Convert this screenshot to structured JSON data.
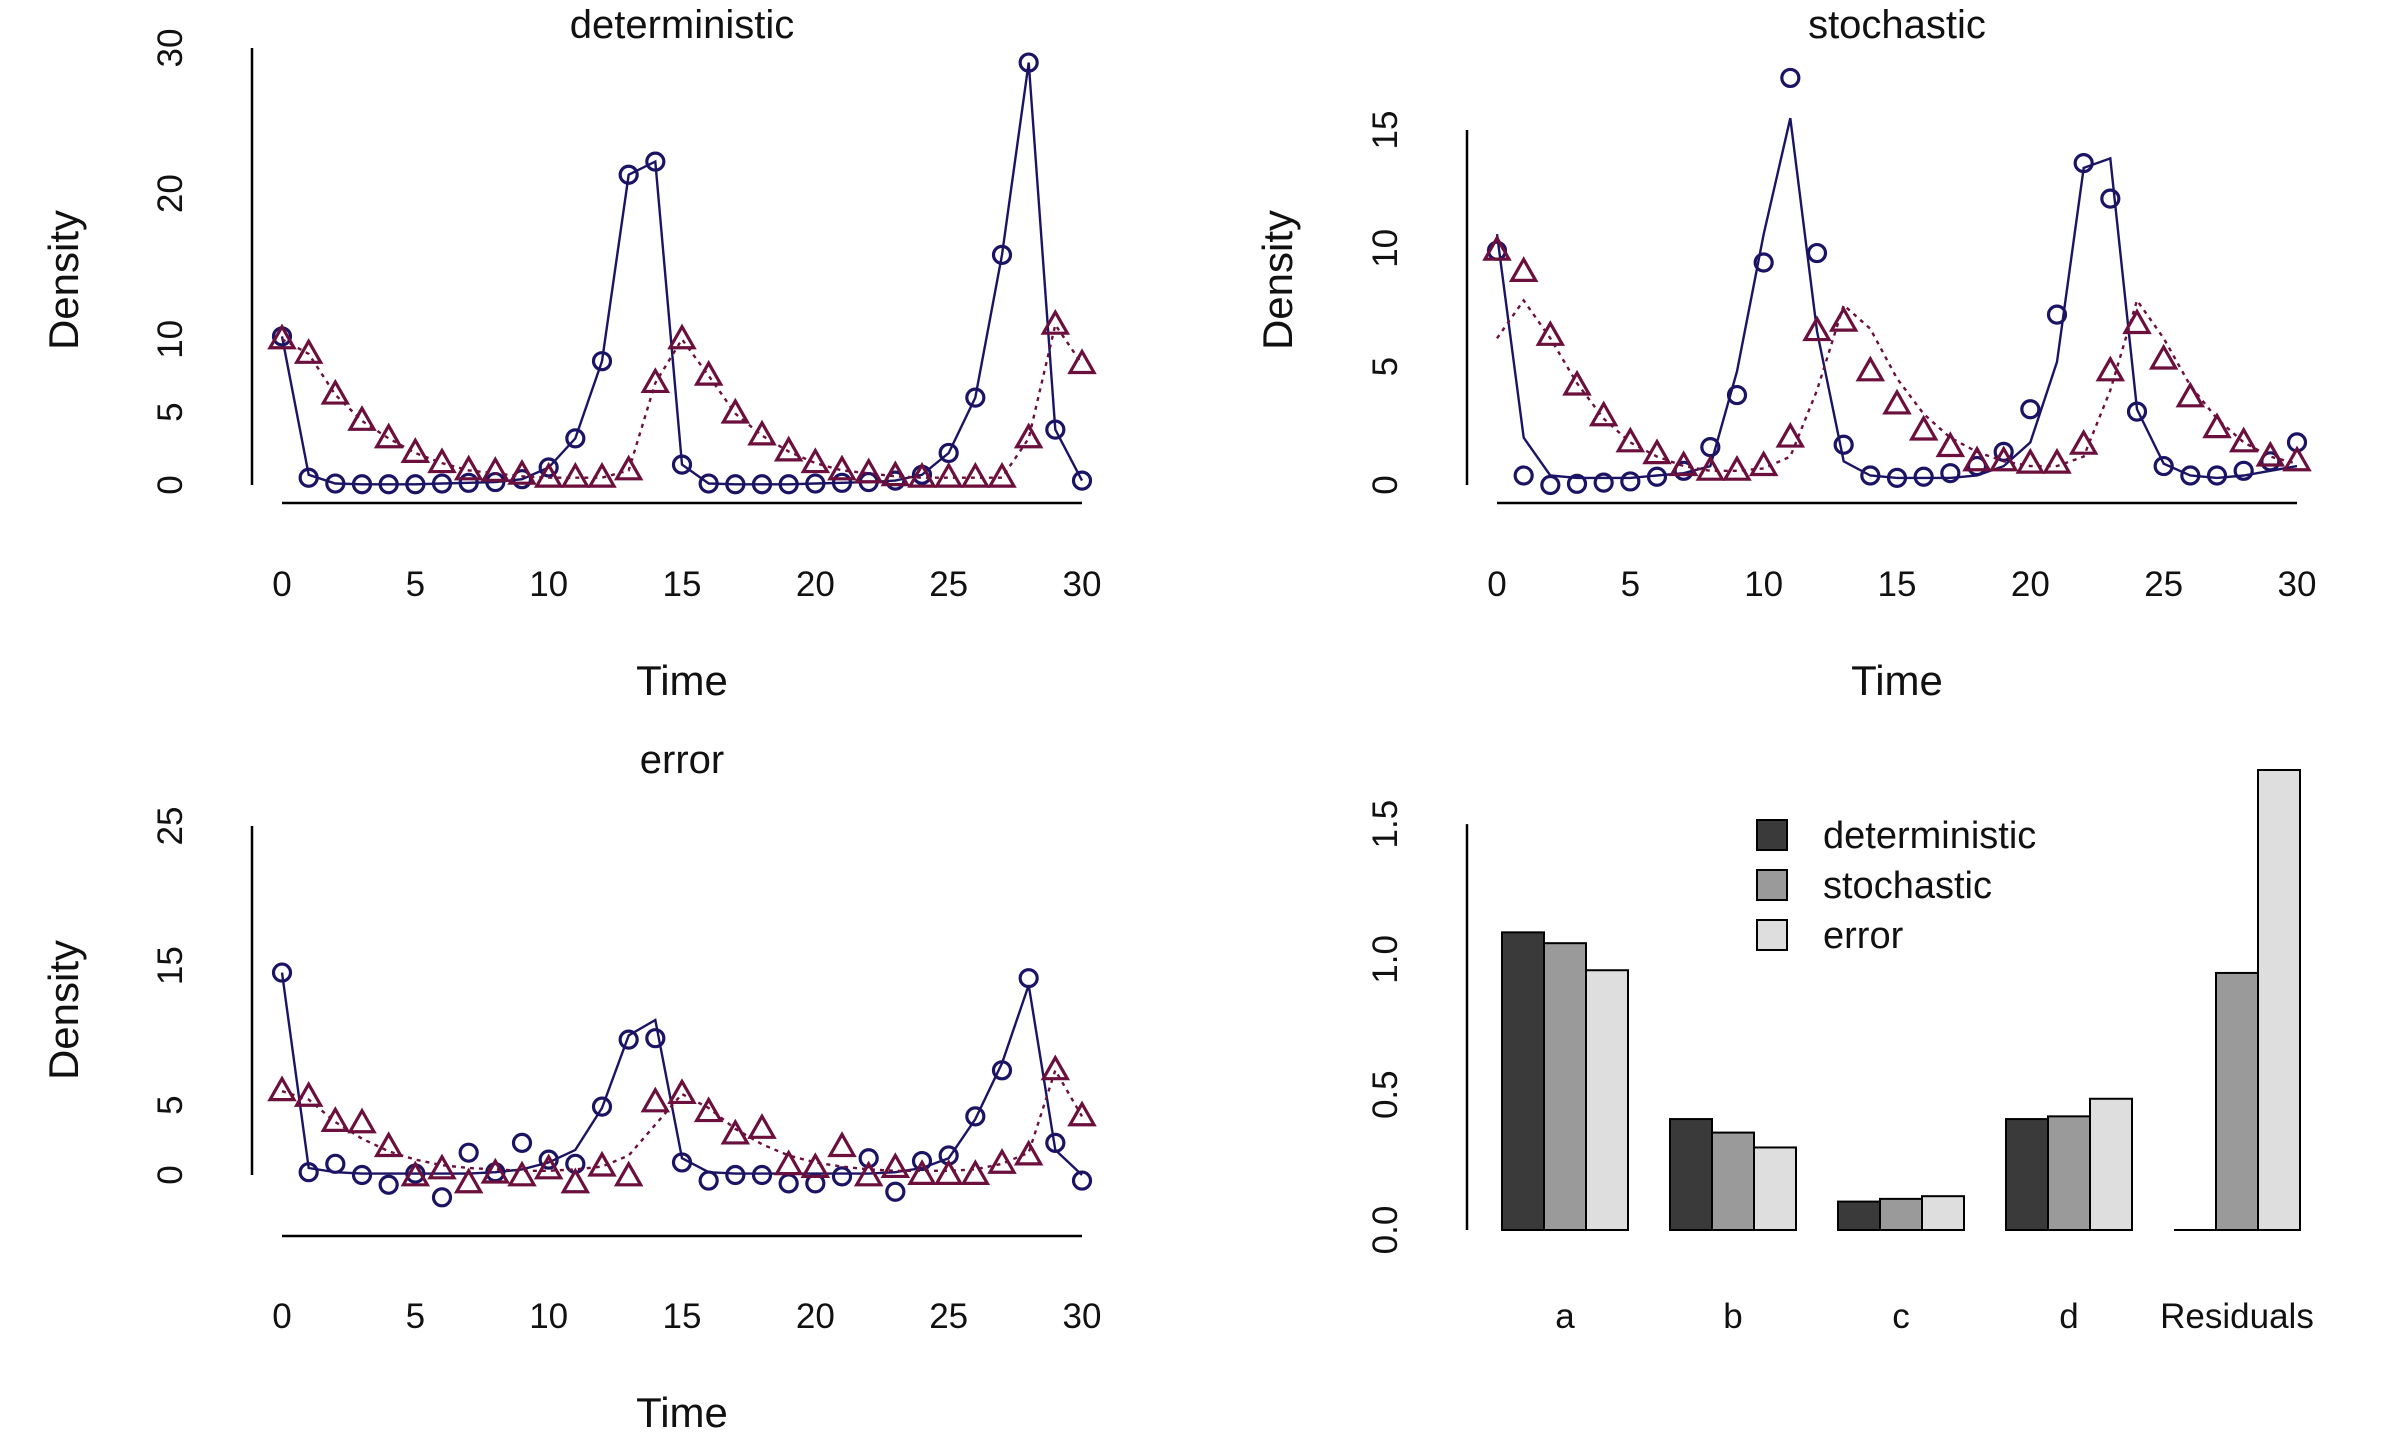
{
  "figure": {
    "layout": "2x2"
  },
  "colors": {
    "prey": "#1b1464",
    "predator": "#6b0f3c",
    "axis": "#000000"
  },
  "chart_data": [
    {
      "type": "line",
      "title": "deterministic",
      "xlabel": "Time",
      "ylabel": "Density",
      "xlim": [
        0,
        30
      ],
      "ylim": [
        0,
        30
      ],
      "xticks": [
        0,
        5,
        10,
        15,
        20,
        25,
        30
      ],
      "yticks": [
        0,
        5,
        10,
        20,
        30
      ],
      "series": [
        {
          "role": "prey",
          "marker": "circle",
          "line": "solid",
          "x": [
            0,
            1,
            2,
            3,
            4,
            5,
            6,
            7,
            8,
            9,
            10,
            11,
            12,
            13,
            14,
            15,
            16,
            17,
            18,
            19,
            20,
            21,
            22,
            23,
            24,
            25,
            26,
            27,
            28,
            29,
            30
          ],
          "points": [
            10.2,
            0.5,
            0.1,
            0.05,
            0.05,
            0.05,
            0.1,
            0.15,
            0.2,
            0.4,
            1.2,
            3.2,
            8.5,
            21.3,
            22.2,
            1.4,
            0.1,
            0.05,
            0.05,
            0.05,
            0.1,
            0.15,
            0.2,
            0.3,
            0.7,
            2.2,
            6.0,
            15.8,
            29.0,
            3.8,
            0.3
          ],
          "fit": [
            10.2,
            0.7,
            0.1,
            0.05,
            0.05,
            0.05,
            0.1,
            0.15,
            0.2,
            0.4,
            1.2,
            3.2,
            8.5,
            21.3,
            22.2,
            1.4,
            0.1,
            0.05,
            0.05,
            0.05,
            0.1,
            0.15,
            0.2,
            0.3,
            0.7,
            2.2,
            6.0,
            15.8,
            29.0,
            3.8,
            0.3
          ]
        },
        {
          "role": "predator",
          "marker": "triangle",
          "line": "dotted",
          "x": [
            0,
            1,
            2,
            3,
            4,
            5,
            6,
            7,
            8,
            9,
            10,
            11,
            12,
            13,
            14,
            15,
            16,
            17,
            18,
            19,
            20,
            21,
            22,
            23,
            24,
            25,
            26,
            27,
            28,
            29,
            30
          ],
          "points": [
            10.0,
            9.0,
            6.2,
            4.4,
            3.2,
            2.2,
            1.5,
            1.0,
            0.9,
            0.7,
            0.5,
            0.5,
            0.5,
            1.0,
            7.0,
            10.0,
            7.5,
            4.9,
            3.4,
            2.3,
            1.5,
            1.0,
            0.8,
            0.6,
            0.5,
            0.5,
            0.5,
            0.5,
            3.2,
            11.0,
            8.3
          ],
          "fit": [
            10.0,
            9.0,
            6.2,
            4.4,
            3.2,
            2.2,
            1.5,
            1.0,
            0.8,
            0.6,
            0.5,
            0.5,
            0.5,
            1.0,
            7.0,
            10.0,
            7.5,
            4.9,
            3.4,
            2.3,
            1.5,
            1.0,
            0.8,
            0.6,
            0.5,
            0.5,
            0.5,
            0.5,
            3.2,
            11.0,
            8.3
          ]
        }
      ]
    },
    {
      "type": "line",
      "title": "stochastic",
      "xlabel": "Time",
      "ylabel": "Density",
      "xlim": [
        0,
        30
      ],
      "ylim": [
        0,
        15
      ],
      "xticks": [
        0,
        5,
        10,
        15,
        20,
        25,
        30
      ],
      "yticks": [
        0,
        5,
        10,
        15
      ],
      "series": [
        {
          "role": "prey",
          "marker": "circle",
          "line": "solid",
          "x": [
            0,
            1,
            2,
            3,
            4,
            5,
            6,
            7,
            8,
            9,
            10,
            11,
            12,
            13,
            14,
            15,
            16,
            17,
            18,
            19,
            20,
            21,
            22,
            23,
            24,
            25,
            26,
            27,
            28,
            29,
            30
          ],
          "points": [
            9.9,
            0.4,
            0.0,
            0.05,
            0.1,
            0.15,
            0.35,
            0.6,
            1.6,
            3.8,
            9.4,
            17.2,
            9.8,
            1.7,
            0.4,
            0.3,
            0.35,
            0.5,
            0.8,
            1.4,
            3.2,
            7.2,
            13.6,
            12.1,
            3.1,
            0.8,
            0.4,
            0.4,
            0.6,
            1.0,
            1.8
          ],
          "fit": [
            10.6,
            2.0,
            0.4,
            0.3,
            0.3,
            0.3,
            0.4,
            0.5,
            0.8,
            4.8,
            10.6,
            15.5,
            6.5,
            1.0,
            0.4,
            0.3,
            0.3,
            0.3,
            0.4,
            0.8,
            1.8,
            5.2,
            13.4,
            13.8,
            3.2,
            0.9,
            0.4,
            0.3,
            0.4,
            0.6,
            0.8
          ]
        },
        {
          "role": "predator",
          "marker": "triangle",
          "line": "dotted",
          "x": [
            0,
            1,
            2,
            3,
            4,
            5,
            6,
            7,
            8,
            9,
            10,
            11,
            12,
            13,
            14,
            15,
            16,
            17,
            18,
            19,
            20,
            21,
            22,
            23,
            24,
            25,
            26,
            27,
            28,
            29,
            30
          ],
          "points": [
            9.9,
            9.0,
            6.3,
            4.2,
            2.9,
            1.8,
            1.3,
            0.8,
            0.6,
            0.6,
            0.8,
            2.0,
            6.5,
            6.9,
            4.8,
            3.4,
            2.3,
            1.6,
            1.0,
            1.0,
            0.9,
            0.9,
            1.7,
            4.8,
            6.8,
            5.3,
            3.7,
            2.4,
            1.8,
            1.2,
            1.0
          ],
          "fit": [
            6.2,
            7.8,
            6.2,
            4.3,
            2.8,
            1.8,
            1.2,
            0.8,
            0.6,
            0.6,
            0.7,
            1.2,
            4.0,
            7.6,
            6.6,
            4.5,
            3.0,
            2.0,
            1.4,
            1.0,
            0.8,
            0.8,
            1.2,
            4.0,
            7.8,
            6.2,
            4.2,
            2.8,
            1.8,
            1.2,
            0.9
          ]
        }
      ]
    },
    {
      "type": "line",
      "title": "error",
      "xlabel": "Time",
      "ylabel": "Density",
      "xlim": [
        0,
        30
      ],
      "ylim": [
        0,
        25
      ],
      "xticks": [
        0,
        5,
        10,
        15,
        20,
        25,
        30
      ],
      "yticks": [
        0,
        5,
        15,
        25
      ],
      "series": [
        {
          "role": "prey",
          "marker": "circle",
          "line": "solid",
          "x": [
            0,
            1,
            2,
            3,
            4,
            5,
            6,
            7,
            8,
            9,
            10,
            11,
            12,
            13,
            14,
            15,
            16,
            17,
            18,
            19,
            20,
            21,
            22,
            23,
            24,
            25,
            26,
            27,
            28,
            29,
            30
          ],
          "points": [
            14.5,
            0.2,
            0.8,
            0.0,
            -0.7,
            0.1,
            -1.6,
            1.6,
            0.2,
            2.3,
            1.1,
            0.8,
            4.9,
            9.7,
            9.8,
            0.9,
            -0.4,
            0.0,
            0.0,
            -0.6,
            -0.6,
            -0.1,
            1.2,
            -1.2,
            1.0,
            1.4,
            4.2,
            7.5,
            14.1,
            2.3,
            -0.4
          ],
          "fit": [
            14.5,
            0.5,
            0.2,
            0.1,
            0.1,
            0.1,
            0.1,
            0.1,
            0.2,
            0.4,
            0.9,
            1.8,
            4.8,
            10.0,
            11.1,
            1.2,
            0.2,
            0.1,
            0.1,
            0.1,
            0.1,
            0.1,
            0.1,
            0.2,
            0.5,
            1.2,
            4.0,
            8.0,
            13.6,
            1.8,
            0.0
          ]
        },
        {
          "role": "predator",
          "marker": "triangle",
          "line": "dotted",
          "x": [
            0,
            1,
            2,
            3,
            4,
            5,
            6,
            7,
            8,
            9,
            10,
            11,
            12,
            13,
            14,
            15,
            16,
            17,
            18,
            19,
            20,
            21,
            22,
            23,
            24,
            25,
            26,
            27,
            28,
            29,
            30
          ],
          "points": [
            6.0,
            5.6,
            3.8,
            3.7,
            2.0,
            -0.1,
            0.4,
            -0.6,
            0.1,
            -0.1,
            0.4,
            -0.6,
            0.6,
            -0.1,
            5.2,
            5.8,
            4.5,
            2.9,
            3.3,
            0.7,
            0.5,
            2.0,
            -0.1,
            0.5,
            0.0,
            0.0,
            0.0,
            0.8,
            1.4,
            7.5,
            4.2
          ],
          "fit": [
            6.0,
            5.4,
            3.8,
            2.6,
            1.7,
            1.1,
            0.7,
            0.5,
            0.4,
            0.3,
            0.3,
            0.4,
            0.6,
            1.4,
            3.6,
            5.8,
            4.8,
            3.3,
            2.2,
            1.4,
            0.9,
            0.6,
            0.4,
            0.3,
            0.3,
            0.3,
            0.4,
            0.8,
            1.6,
            7.5,
            4.2
          ]
        }
      ]
    },
    {
      "type": "bar",
      "ylim": [
        0,
        1.7
      ],
      "yticks": [
        "0.0",
        "0.5",
        "1.0",
        "1.5"
      ],
      "categories": [
        "a",
        "b",
        "c",
        "d",
        "Residuals"
      ],
      "legend_position": "top-center",
      "series": [
        {
          "name": "deterministic",
          "color": "#3a3a3a",
          "values": [
            1.1,
            0.41,
            0.105,
            0.41,
            0.0
          ]
        },
        {
          "name": "stochastic",
          "color": "#9a9a9a",
          "values": [
            1.06,
            0.36,
            0.115,
            0.42,
            0.95
          ]
        },
        {
          "name": "error",
          "color": "#dedede",
          "values": [
            0.96,
            0.305,
            0.125,
            0.485,
            1.7
          ]
        }
      ]
    }
  ]
}
